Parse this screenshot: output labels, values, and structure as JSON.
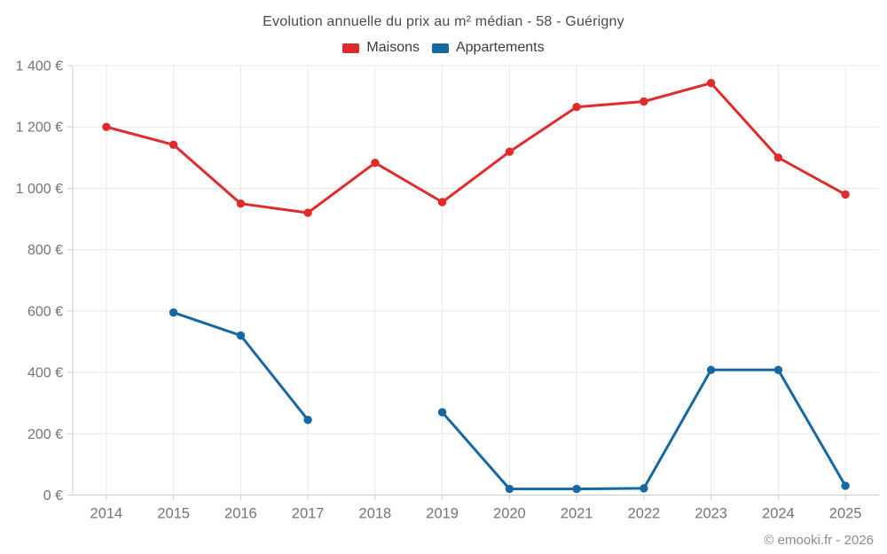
{
  "chart_data": {
    "type": "line",
    "title": "Evolution annuelle du prix au m² médian - 58 - Guérigny",
    "categories": [
      "2014",
      "2015",
      "2016",
      "2017",
      "2018",
      "2019",
      "2020",
      "2021",
      "2022",
      "2023",
      "2024",
      "2025"
    ],
    "series": [
      {
        "name": "Maisons",
        "color": "#e02b2b",
        "values": [
          1200,
          1142,
          950,
          920,
          1083,
          955,
          1119,
          1265,
          1283,
          1343,
          1100,
          980
        ]
      },
      {
        "name": "Appartements",
        "color": "#1668a3",
        "values": [
          null,
          595,
          520,
          245,
          null,
          270,
          20,
          20,
          22,
          408,
          408,
          30
        ]
      }
    ],
    "xlabel": "",
    "ylabel": "",
    "ylim": [
      0,
      1400
    ],
    "ytick_step": 200,
    "ytick_labels": [
      "0 €",
      "200 €",
      "400 €",
      "600 €",
      "800 €",
      "1 000 €",
      "1 200 €",
      "1 400 €"
    ],
    "grid": true,
    "legend_position": "top",
    "footer": "© emooki.fr - 2026"
  },
  "colors": {
    "background": "#ffffff",
    "grid": "#e9e9e9",
    "axis": "#cccccc",
    "tick_text": "#757575",
    "title_text": "#4a4a4a",
    "legend_text": "#3c3c3c",
    "footer_text": "#8c8c8c"
  }
}
